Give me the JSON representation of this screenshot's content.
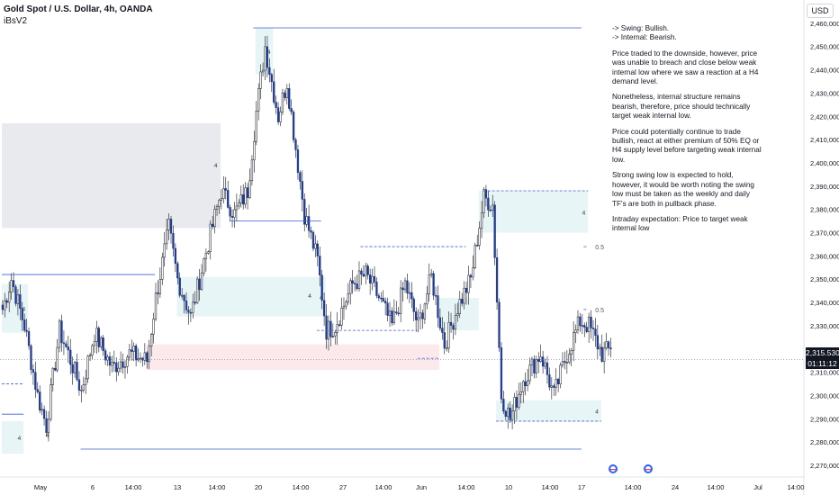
{
  "header": {
    "title": "Gold Spot / U.S. Dollar, 4h, OANDA",
    "indicator": "iBsV2",
    "currency": "USD"
  },
  "notes": [
    "-> Swing:  Bullish.\n-> Internal:  Bearish.",
    "Price traded to the downside, however, price was unable to breach and close below weak internal low where we saw a reaction at a H4 demand level.",
    "Nonetheless, internal structure remains bearish, therefore, price should technically target weak internal low.",
    "Price could potentially continue to trade bullish, react at either premium of 50% EQ or H4 supply level before targeting weak internal low.",
    "Strong swing low is expected to hold, however, it would be worth noting the swing low must be taken as the weekly and daily TF's are both in pullback phase.",
    "Intraday expectation: Price to target weak internal low"
  ],
  "price_tag": {
    "price": "2,315.530",
    "countdown": "01:11:12"
  },
  "colors": {
    "up_candle": "#ffffff",
    "down_candle": "#1f3a93",
    "structure_line": "#3d5fd6",
    "demand_zone": "#e8f5f7",
    "supply_zone": "#e8eaee",
    "pink_zone": "#fbe9ec",
    "axis_text": "#131722"
  },
  "chart_data": {
    "type": "candlestick",
    "symbol": "XAUUSD",
    "timeframe": "4h",
    "ylim": [
      2265,
      2470
    ],
    "y_ticks": [
      2270,
      2280,
      2290,
      2300,
      2310,
      2320,
      2330,
      2340,
      2350,
      2360,
      2370,
      2380,
      2390,
      2400,
      2410,
      2420,
      2430,
      2440,
      2450,
      2460
    ],
    "y_tick_labels": [
      "2,270,000",
      "2,280,000",
      "2,290,000",
      "2,300,000",
      "2,310,000",
      "2,320,000",
      "2,330,000",
      "2,340,000",
      "2,350,000",
      "2,360,000",
      "2,370,000",
      "2,380,000",
      "2,390,000",
      "2,400,000",
      "2,410,000",
      "2,420,000",
      "2,430,000",
      "2,440,000",
      "2,450,000",
      "2,460,000"
    ],
    "x_labels": [
      "May",
      "6",
      "14:00",
      "13",
      "14:00",
      "20",
      "14:00",
      "27",
      "14:00",
      "Jun",
      "14:00",
      "10",
      "14:00",
      "17",
      "14:00",
      "24",
      "14:00",
      "Jul",
      "14:00"
    ],
    "last_price": 2315.53,
    "anchors": [
      [
        0,
        2337
      ],
      [
        4,
        2350
      ],
      [
        10,
        2330
      ],
      [
        16,
        2300
      ],
      [
        20,
        2287
      ],
      [
        26,
        2328
      ],
      [
        30,
        2318
      ],
      [
        36,
        2302
      ],
      [
        42,
        2327
      ],
      [
        50,
        2312
      ],
      [
        58,
        2318
      ],
      [
        66,
        2315
      ],
      [
        70,
        2342
      ],
      [
        76,
        2372
      ],
      [
        80,
        2350
      ],
      [
        86,
        2334
      ],
      [
        92,
        2358
      ],
      [
        100,
        2388
      ],
      [
        106,
        2378
      ],
      [
        112,
        2388
      ],
      [
        116,
        2422
      ],
      [
        120,
        2450
      ],
      [
        126,
        2420
      ],
      [
        130,
        2435
      ],
      [
        138,
        2378
      ],
      [
        144,
        2358
      ],
      [
        148,
        2328
      ],
      [
        152,
        2330
      ],
      [
        160,
        2348
      ],
      [
        166,
        2352
      ],
      [
        172,
        2342
      ],
      [
        178,
        2330
      ],
      [
        184,
        2348
      ],
      [
        190,
        2330
      ],
      [
        196,
        2351
      ],
      [
        202,
        2322
      ],
      [
        208,
        2338
      ],
      [
        214,
        2350
      ],
      [
        220,
        2385
      ],
      [
        224,
        2382
      ],
      [
        228,
        2300
      ],
      [
        232,
        2290
      ],
      [
        238,
        2307
      ],
      [
        246,
        2318
      ],
      [
        252,
        2300
      ],
      [
        258,
        2318
      ],
      [
        264,
        2332
      ],
      [
        268,
        2330
      ],
      [
        274,
        2318
      ],
      [
        278,
        2320
      ]
    ],
    "zones": [
      {
        "kind": "supply",
        "from": 0,
        "to": 100,
        "low": 2372,
        "high": 2417,
        "label": ""
      },
      {
        "kind": "demand",
        "from": 80,
        "to": 148,
        "low": 2334,
        "high": 2351,
        "label": "4"
      },
      {
        "kind": "demand",
        "from": 0,
        "to": 12,
        "low": 2327,
        "high": 2348,
        "label": "4"
      },
      {
        "kind": "demand",
        "from": 0,
        "to": 10,
        "low": 2275,
        "high": 2289,
        "label": "4"
      },
      {
        "kind": "demand",
        "from": 116,
        "to": 124,
        "low": 2438,
        "high": 2458,
        "label": "4"
      },
      {
        "kind": "demand",
        "from": 218,
        "to": 268,
        "low": 2370,
        "high": 2388,
        "label": "4"
      },
      {
        "kind": "demand",
        "from": 200,
        "to": 218,
        "low": 2328,
        "high": 2342,
        "label": ""
      },
      {
        "kind": "demand",
        "from": 226,
        "to": 274,
        "low": 2289,
        "high": 2298,
        "label": "4"
      },
      {
        "kind": "pink",
        "from": 66,
        "to": 200,
        "low": 2311,
        "high": 2322,
        "label": ""
      }
    ],
    "levels": [
      {
        "price": 2458,
        "from": 115,
        "to": 265,
        "style": "solid",
        "label": ""
      },
      {
        "price": 2289,
        "from": 226,
        "to": 274,
        "style": "dashed",
        "label": ""
      },
      {
        "price": 2277,
        "from": 36,
        "to": 265,
        "style": "solid",
        "label": ""
      },
      {
        "price": 2352,
        "from": 0,
        "to": 70,
        "style": "solid",
        "label": ""
      },
      {
        "price": 2292,
        "from": 0,
        "to": 10,
        "style": "solid",
        "label": ""
      },
      {
        "price": 2305,
        "from": 0,
        "to": 10,
        "style": "dashed",
        "label": ""
      },
      {
        "price": 2375,
        "from": 104,
        "to": 146,
        "style": "solid",
        "label": ""
      },
      {
        "price": 2364,
        "from": 164,
        "to": 212,
        "style": "dashed",
        "label": ""
      },
      {
        "price": 2328,
        "from": 144,
        "to": 190,
        "style": "dashed",
        "label": ""
      },
      {
        "price": 2316,
        "from": 190,
        "to": 200,
        "style": "dashed",
        "label": ""
      },
      {
        "price": 2388,
        "from": 220,
        "to": 268,
        "style": "dashed",
        "label": ""
      },
      {
        "price": 2364,
        "from": 266,
        "to": 268,
        "style": "dashed",
        "label": "0.5"
      },
      {
        "price": 2337,
        "from": 266,
        "to": 268,
        "style": "dashed",
        "label": "0.5"
      }
    ],
    "marker_labels": [
      {
        "i": 97,
        "price": 2398,
        "text": "4"
      },
      {
        "i": 140,
        "price": 2342,
        "text": "4"
      },
      {
        "i": 20,
        "price": 2282,
        "text": "4"
      }
    ]
  }
}
